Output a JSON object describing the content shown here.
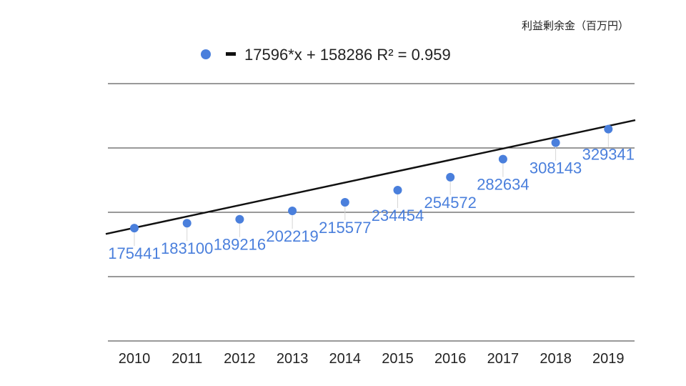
{
  "chart_data": {
    "type": "scatter",
    "title": "利益剰余金（百万円）",
    "legend": {
      "placement": "top",
      "trendline_label": "17596*x + 158286 R² = 0.959"
    },
    "categories": [
      "2010",
      "2011",
      "2012",
      "2013",
      "2014",
      "2015",
      "2016",
      "2017",
      "2018",
      "2019"
    ],
    "series": [
      {
        "values": [
          175441,
          183100,
          189216,
          202219,
          215577,
          234454,
          254572,
          282634,
          308143,
          329341
        ],
        "color": "#4a7fdc"
      }
    ],
    "trendline": {
      "slope": 17596,
      "intercept": 158286,
      "r_squared": 0.959,
      "color": "#111111"
    },
    "ylim": [
      0,
      400000
    ],
    "grid": true,
    "data_labels": true
  }
}
